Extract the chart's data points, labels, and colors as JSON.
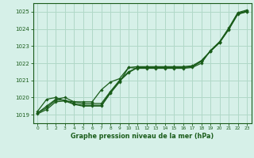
{
  "title": "Graphe pression niveau de la mer (hPa)",
  "xlim": [
    -0.5,
    23.5
  ],
  "ylim": [
    1018.5,
    1025.5
  ],
  "yticks": [
    1019,
    1020,
    1021,
    1022,
    1023,
    1024,
    1025
  ],
  "xticks": [
    0,
    1,
    2,
    3,
    4,
    5,
    6,
    7,
    8,
    9,
    10,
    11,
    12,
    13,
    14,
    15,
    16,
    17,
    18,
    19,
    20,
    21,
    22,
    23
  ],
  "background_color": "#d6f0e8",
  "grid_color": "#b0d8c8",
  "line_color": "#1a5c1a",
  "series": [
    [
      1019.2,
      1019.9,
      1020.0,
      1019.8,
      1019.75,
      1019.75,
      1019.75,
      1020.45,
      1020.9,
      1021.1,
      1021.75,
      1021.7,
      1021.7,
      1021.7,
      1021.7,
      1021.7,
      1021.7,
      1021.75,
      1022.0,
      1022.75,
      1023.25,
      1024.05,
      1024.95,
      1025.1
    ],
    [
      1019.1,
      1019.5,
      1019.9,
      1020.0,
      1019.75,
      1019.65,
      1019.65,
      1019.65,
      1020.35,
      1021.0,
      1021.5,
      1021.75,
      1021.75,
      1021.75,
      1021.75,
      1021.75,
      1021.75,
      1021.8,
      1022.1,
      1022.7,
      1023.2,
      1024.0,
      1024.9,
      1025.05
    ],
    [
      1019.1,
      1019.4,
      1019.85,
      1019.85,
      1019.65,
      1019.55,
      1019.55,
      1019.55,
      1020.3,
      1020.95,
      1021.45,
      1021.75,
      1021.75,
      1021.75,
      1021.75,
      1021.75,
      1021.75,
      1021.8,
      1022.15,
      1022.7,
      1023.2,
      1023.95,
      1024.85,
      1025.0
    ],
    [
      1019.05,
      1019.3,
      1019.75,
      1019.8,
      1019.6,
      1019.5,
      1019.5,
      1019.5,
      1020.25,
      1020.9,
      1021.75,
      1021.8,
      1021.8,
      1021.8,
      1021.8,
      1021.8,
      1021.8,
      1021.85,
      1022.15,
      1022.7,
      1023.25,
      1024.0,
      1024.9,
      1025.0
    ]
  ],
  "fig_width": 3.2,
  "fig_height": 2.0,
  "dpi": 100
}
